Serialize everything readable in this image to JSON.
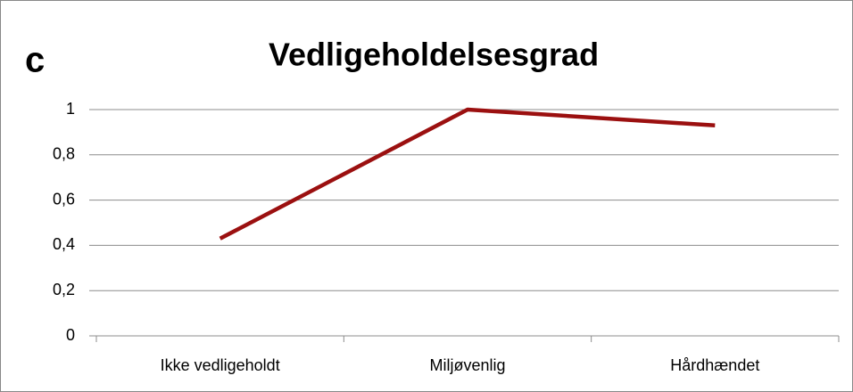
{
  "chart_data": {
    "type": "line",
    "panel_label": "c",
    "title": "Vedligeholdelsesgrad",
    "categories": [
      "Ikke vedligeholdt",
      "Miljøvenlig",
      "Hårdhændet"
    ],
    "values": [
      0.43,
      1.0,
      0.93
    ],
    "color": "#9b1010",
    "ylim": [
      0,
      1
    ],
    "yticks": [
      0,
      {
        "value": 0.2,
        "label": "0,2"
      },
      {
        "value": 0.4,
        "label": "0,4"
      },
      {
        "value": 0.6,
        "label": "0,6"
      },
      {
        "value": 0.8,
        "label": "0,8"
      },
      1
    ],
    "grid": true
  }
}
